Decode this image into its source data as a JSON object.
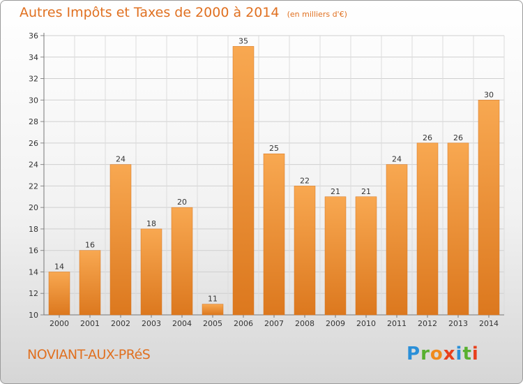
{
  "header": {
    "title": "Autres Impôts et Taxes de 2000 à 2014",
    "unit": "(en milliers d'€)"
  },
  "footer": {
    "town": "NOVIANT-AUX-PRéS",
    "logo_letters": [
      "P",
      "r",
      "o",
      "x",
      "i",
      "t",
      "i"
    ],
    "logo_colors": [
      "#2a8fd8",
      "#58b030",
      "#f08a1c",
      "#e8401c",
      "#2a8fd8",
      "#58b030",
      "#e8401c"
    ]
  },
  "colors": {
    "accent": "#e07020",
    "bar_light": "#f8a851",
    "bar_dark": "#dd7a1f",
    "grid": "#cccccc",
    "text": "#333333"
  },
  "chart_data": {
    "type": "bar",
    "categories": [
      "2000",
      "2001",
      "2002",
      "2003",
      "2004",
      "2005",
      "2006",
      "2007",
      "2008",
      "2009",
      "2010",
      "2011",
      "2012",
      "2013",
      "2014"
    ],
    "values": [
      14,
      16,
      24,
      18,
      20,
      11,
      35,
      25,
      22,
      21,
      21,
      24,
      26,
      26,
      30
    ],
    "yticks": [
      10,
      12,
      14,
      16,
      18,
      20,
      22,
      24,
      26,
      28,
      30,
      32,
      34,
      36
    ],
    "ylim": [
      10,
      36
    ],
    "grid": true,
    "data_labels": true
  }
}
